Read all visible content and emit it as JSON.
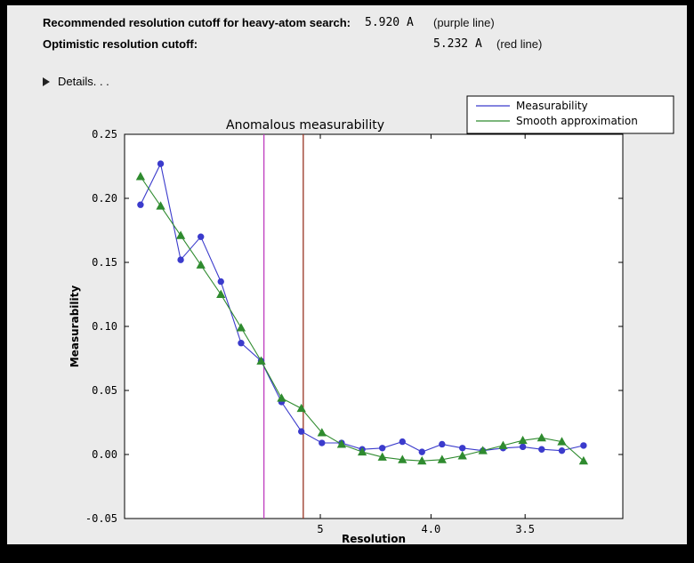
{
  "window": {
    "frame_color": "#000000",
    "panel_color": "#ebebeb"
  },
  "header": {
    "rows": [
      {
        "label": "Recommended resolution cutoff for heavy-atom search:",
        "value": "5.920 A",
        "note": "(purple line)"
      },
      {
        "label": "Optimistic resolution cutoff:",
        "value": "5.232 A",
        "note": "(red line)"
      }
    ],
    "details_label": "Details. . ."
  },
  "chart_data": {
    "type": "line",
    "title": "Anomalous measurability",
    "xlabel": "Resolution",
    "ylabel": "Measurability",
    "x_axis": {
      "transform": "1/d^2",
      "range_inv_d2": [
        0.0002,
        0.1015
      ],
      "ticks": [
        {
          "d": 5.0,
          "label": "5"
        },
        {
          "d": 4.0,
          "label": "4.0"
        },
        {
          "d": 3.5,
          "label": "3.5"
        }
      ]
    },
    "y_axis": {
      "range": [
        -0.05,
        0.25
      ],
      "tick_labels": [
        "-0.05",
        "0.00",
        "0.05",
        "0.10",
        "0.15",
        "0.20",
        "0.25"
      ]
    },
    "resolution_points_A": [
      17.05,
      11.52,
      9.28,
      7.98,
      7.11,
      6.47,
      5.98,
      5.58,
      5.26,
      4.98,
      4.75,
      4.54,
      4.36,
      4.2,
      4.06,
      3.93,
      3.81,
      3.7,
      3.6,
      3.51,
      3.43,
      3.35,
      3.27
    ],
    "series": [
      {
        "name": "Measurability",
        "color": "#3b3bcc",
        "marker": "circle",
        "values": [
          0.195,
          0.227,
          0.152,
          0.17,
          0.135,
          0.087,
          0.073,
          0.041,
          0.018,
          0.009,
          0.009,
          0.004,
          0.005,
          0.01,
          0.002,
          0.008,
          0.005,
          0.003,
          0.005,
          0.006,
          0.004,
          0.003,
          0.007
        ]
      },
      {
        "name": "Smooth approximation",
        "color": "#2f8b2f",
        "marker": "triangle",
        "values": [
          0.217,
          0.194,
          0.171,
          0.148,
          0.125,
          0.099,
          0.073,
          0.044,
          0.036,
          0.017,
          0.008,
          0.002,
          -0.002,
          -0.004,
          -0.005,
          -0.004,
          -0.001,
          0.003,
          0.007,
          0.011,
          0.013,
          0.01,
          -0.005
        ]
      }
    ],
    "vlines": [
      {
        "name": "purple-line",
        "resolution_A": 5.92,
        "color": "#bf3ebf"
      },
      {
        "name": "red-line",
        "resolution_A": 5.232,
        "color": "#993322"
      }
    ],
    "legend": {
      "position": "upper right",
      "entries": [
        "Measurability",
        "Smooth approximation"
      ]
    }
  }
}
